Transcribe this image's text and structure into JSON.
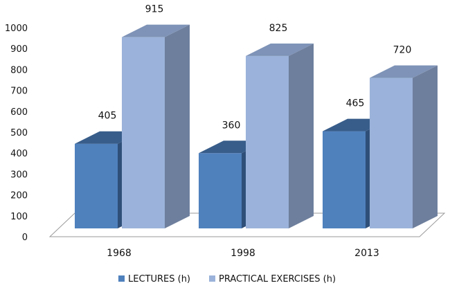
{
  "chart_data": {
    "type": "bar",
    "title": "",
    "xlabel": "",
    "ylabel": "",
    "categories": [
      "1968",
      "1998",
      "2013"
    ],
    "series": [
      {
        "name": "LECTURES (h)",
        "values": [
          405,
          360,
          465
        ]
      },
      {
        "name": "PRACTICAL EXERCISES (h)",
        "values": [
          915,
          825,
          720
        ]
      }
    ],
    "data_labels": [
      [
        "405",
        "360",
        "465"
      ],
      [
        "915",
        "825",
        "720"
      ]
    ],
    "ylim": [
      0,
      1000
    ],
    "yticks": [
      "0",
      "100",
      "200",
      "300",
      "400",
      "500",
      "600",
      "700",
      "800",
      "900",
      "1000"
    ],
    "grid": false,
    "legend_position": "bottom",
    "style": "3d-clustered-column"
  },
  "colors": {
    "lectures_front": "#4F81BD",
    "lectures_top": "#385D8A",
    "lectures_side": "#2F4F79",
    "exercises_front": "#9BB3DA",
    "exercises_top": "#7E93B7",
    "exercises_side": "#6E7F9D"
  }
}
